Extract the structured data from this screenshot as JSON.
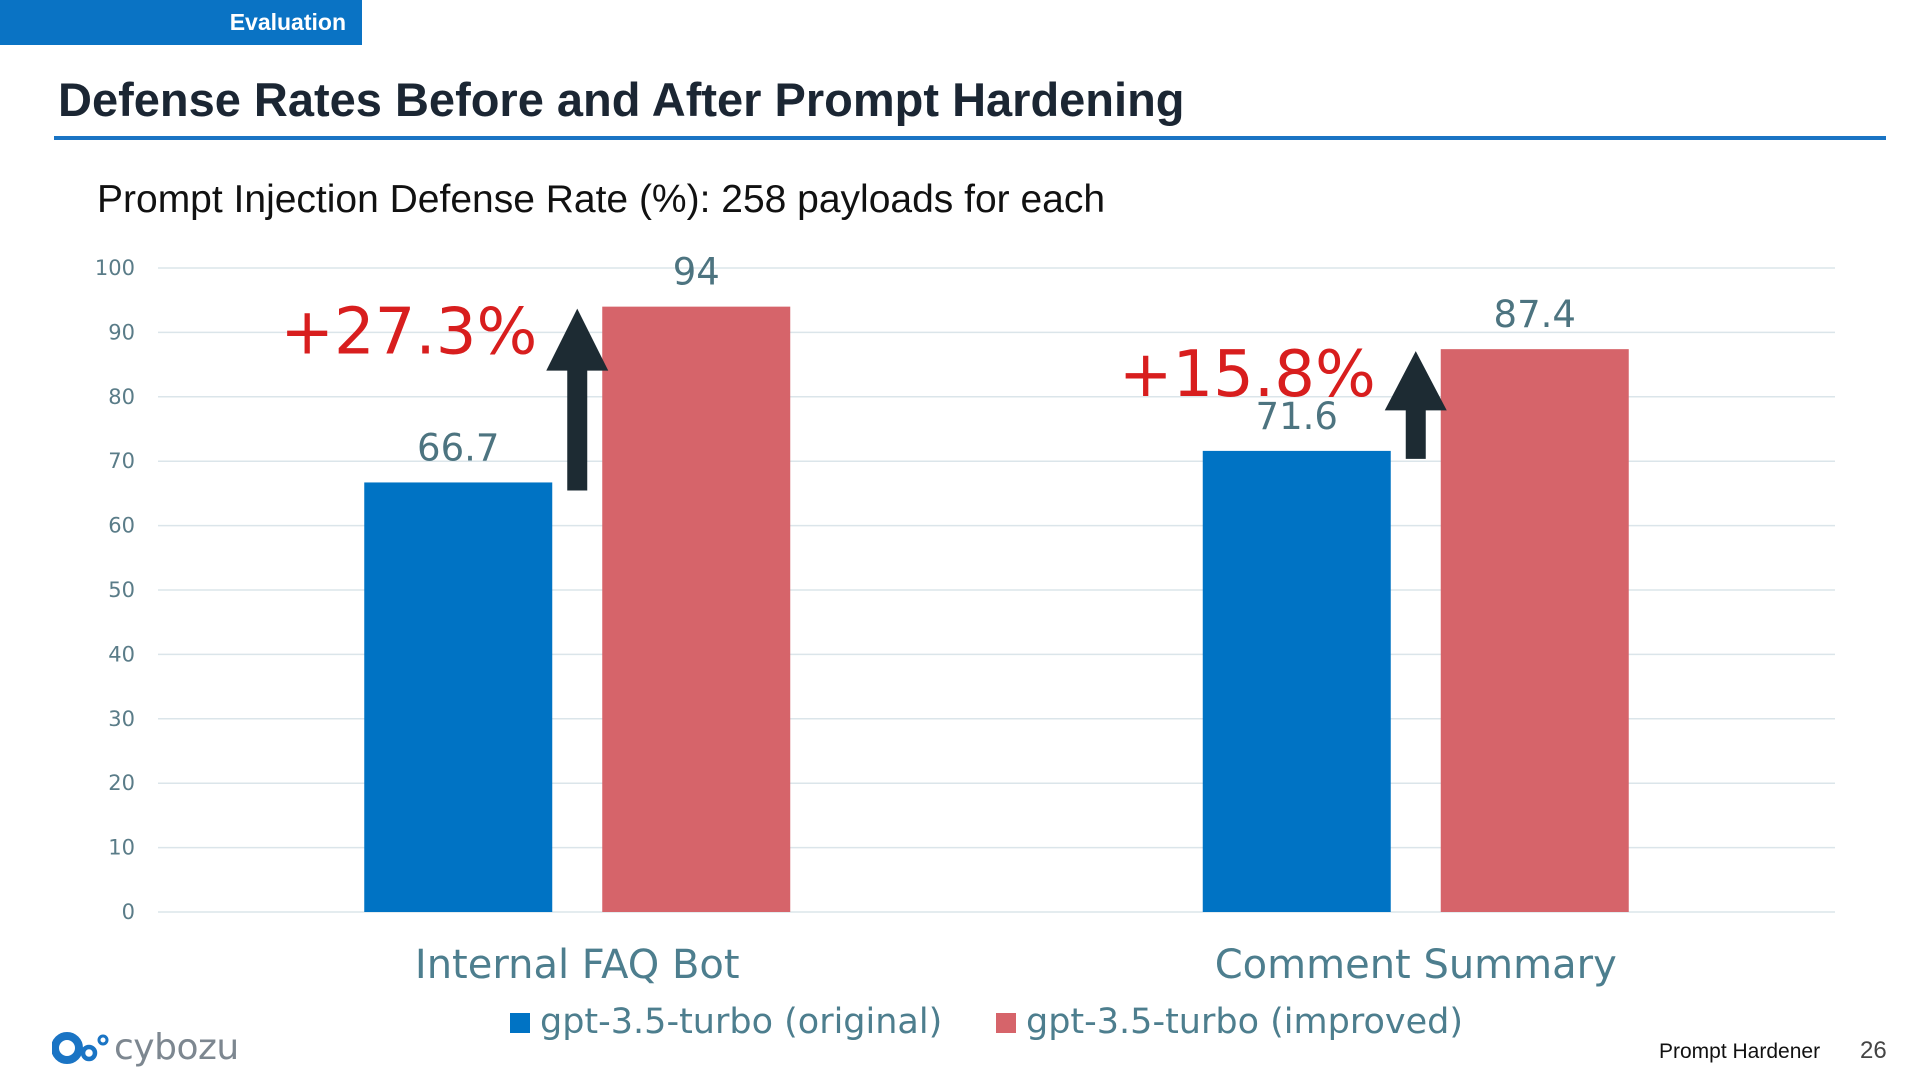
{
  "slide": {
    "section_tag": "Evaluation",
    "title": "Defense Rates Before and After Prompt Hardening",
    "footer_product": "Prompt Hardener",
    "page_number": "26",
    "logo_text": "cybozu"
  },
  "colors": {
    "accent_blue": "#0a73c4",
    "series_original": "#0073c4",
    "series_improved": "#d6646a",
    "delta_red": "#d81e1e",
    "arrow": "#1d2b33"
  },
  "chart_data": {
    "type": "bar",
    "title": "Prompt Injection Defense Rate (%): 258 payloads for each",
    "xlabel": "",
    "ylabel": "",
    "categories": [
      "Internal FAQ Bot",
      "Comment Summary"
    ],
    "series": [
      {
        "name": "gpt-3.5-turbo (original)",
        "values": [
          66.7,
          71.6
        ],
        "labels": [
          "66.7",
          "71.6"
        ]
      },
      {
        "name": "gpt-3.5-turbo (improved)",
        "values": [
          94,
          87.4
        ],
        "labels": [
          "94",
          "87.4"
        ]
      }
    ],
    "annotations": [
      "+27.3%",
      "+15.8%"
    ],
    "ylim": [
      0,
      100
    ],
    "yticks": [
      0,
      10,
      20,
      30,
      40,
      50,
      60,
      70,
      80,
      90,
      100
    ],
    "grid": true,
    "legend_position": "bottom"
  }
}
